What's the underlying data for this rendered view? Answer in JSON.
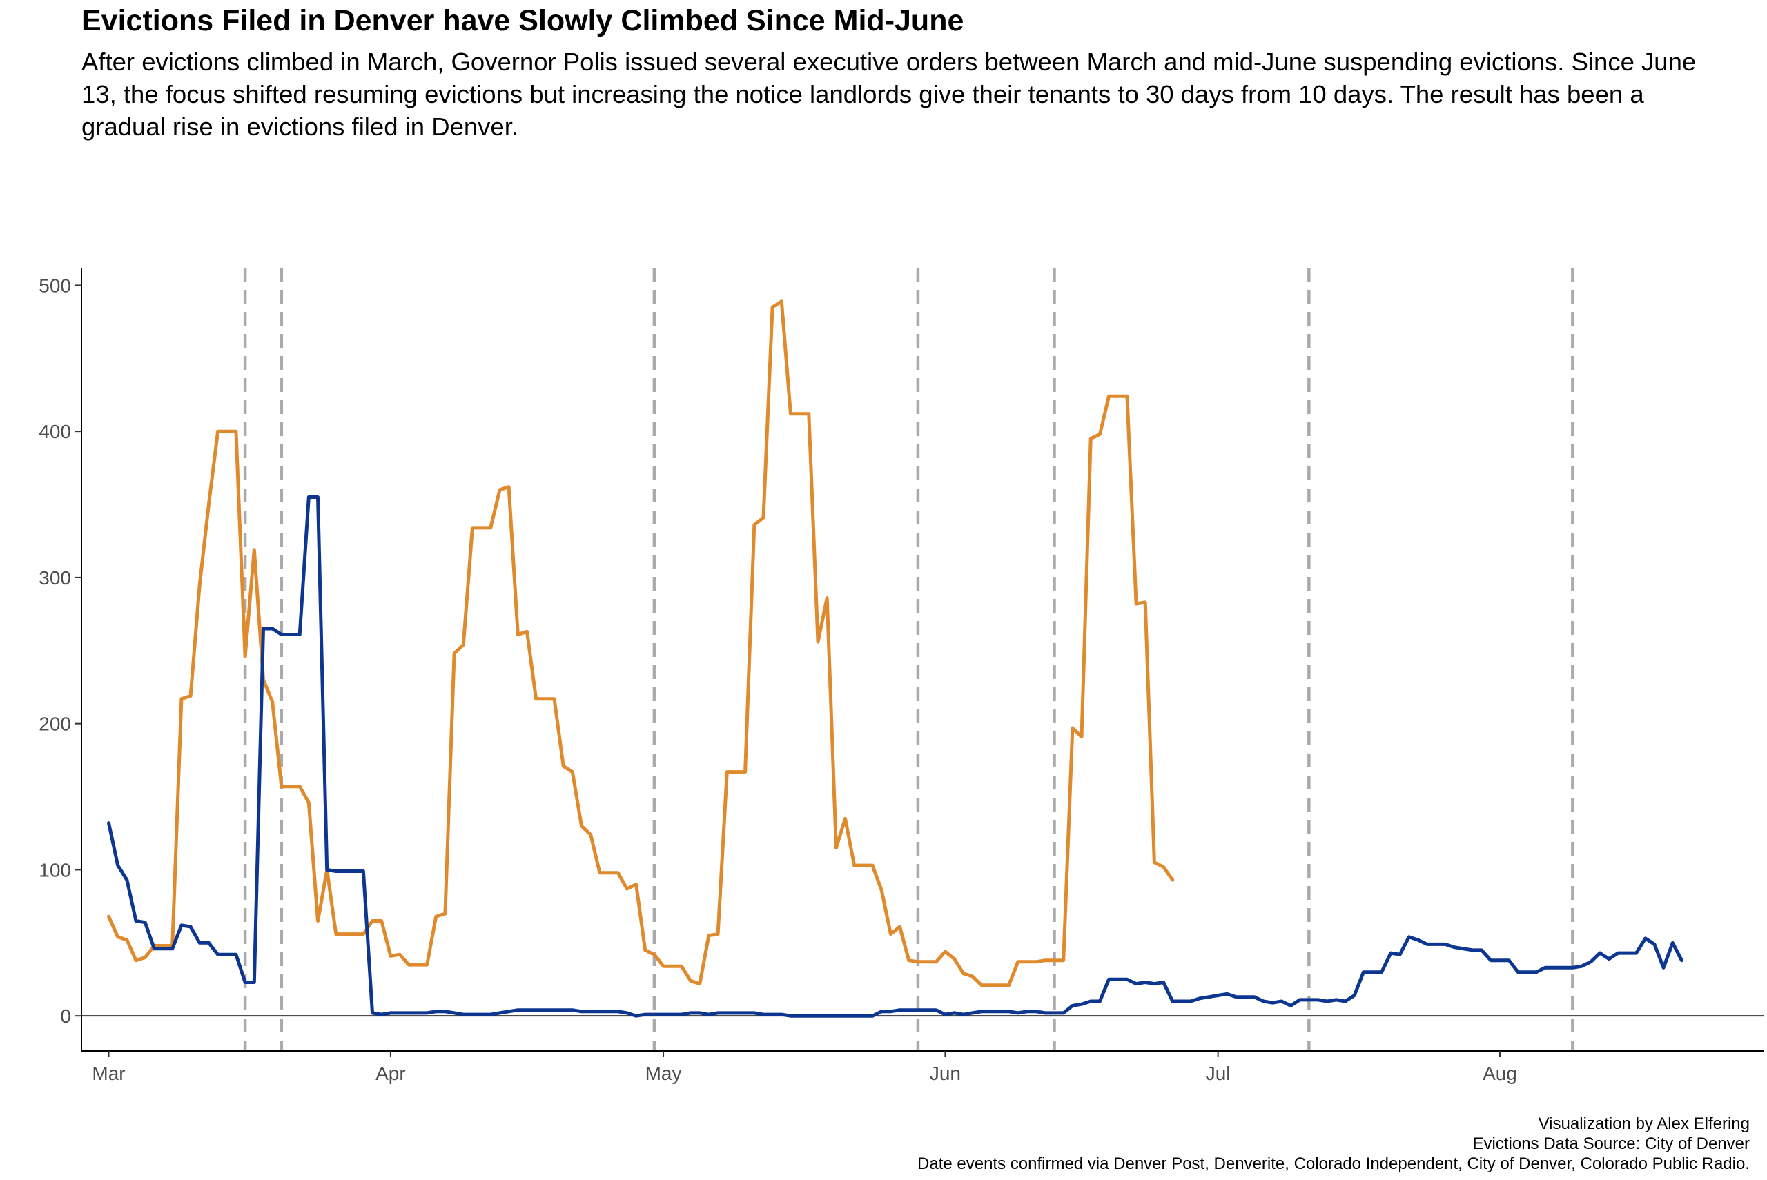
{
  "header": {
    "title": "Evictions Filed in Denver have Slowly Climbed Since Mid-June",
    "subtitle": "After evictions climbed in March, Governor Polis issued several executive orders between March and mid-June suspending evictions. Since June 13, the focus shifted resuming evictions but increasing the notice landlords give their tenants to 30 days from 10 days. The result has been a gradual rise in evictions filed in Denver."
  },
  "caption": {
    "line1": "Visualization by Alex Elfering",
    "line2": "Evictions Data Source: City of Denver",
    "line3": "Date events confirmed via Denver Post, Denverite, Colorado Independent, City of Denver, Colorado Public Radio."
  },
  "chart_data": {
    "type": "line",
    "title": "Evictions Filed in Denver have Slowly Climbed Since Mid-June",
    "xlabel": "",
    "ylabel": "",
    "xlim": [
      "2020-02-27",
      "2020-08-30"
    ],
    "ylim": [
      -24,
      512
    ],
    "x_ticks": [
      {
        "date": "2020-03-01",
        "label": "Mar"
      },
      {
        "date": "2020-04-01",
        "label": "Apr"
      },
      {
        "date": "2020-05-01",
        "label": "May"
      },
      {
        "date": "2020-06-01",
        "label": "Jun"
      },
      {
        "date": "2020-07-01",
        "label": "Jul"
      },
      {
        "date": "2020-08-01",
        "label": "Aug"
      }
    ],
    "y_ticks": [
      0,
      100,
      200,
      300,
      400,
      500
    ],
    "grid": false,
    "legend": "none",
    "reference_line_y": 0,
    "event_dates": [
      "2020-03-16",
      "2020-03-20",
      "2020-04-30",
      "2020-05-29",
      "2020-06-13",
      "2020-07-11",
      "2020-08-09"
    ],
    "colors": {
      "orange": "#E08A2E",
      "blue": "#0D3691",
      "event_line": "#AAAAAA",
      "axis": "#000000"
    },
    "series": [
      {
        "color": "#E08A2E",
        "points": [
          [
            "2020-03-01",
            68
          ],
          [
            "2020-03-02",
            54
          ],
          [
            "2020-03-03",
            52
          ],
          [
            "2020-03-04",
            38
          ],
          [
            "2020-03-05",
            40
          ],
          [
            "2020-03-06",
            48
          ],
          [
            "2020-03-07",
            48
          ],
          [
            "2020-03-08",
            48
          ],
          [
            "2020-03-09",
            217
          ],
          [
            "2020-03-10",
            219
          ],
          [
            "2020-03-11",
            295
          ],
          [
            "2020-03-12",
            350
          ],
          [
            "2020-03-13",
            400
          ],
          [
            "2020-03-14",
            400
          ],
          [
            "2020-03-15",
            400
          ],
          [
            "2020-03-16",
            246
          ],
          [
            "2020-03-17",
            319
          ],
          [
            "2020-03-18",
            230
          ],
          [
            "2020-03-19",
            215
          ],
          [
            "2020-03-20",
            157
          ],
          [
            "2020-03-21",
            157
          ],
          [
            "2020-03-22",
            157
          ],
          [
            "2020-03-23",
            146
          ],
          [
            "2020-03-24",
            65
          ],
          [
            "2020-03-25",
            100
          ],
          [
            "2020-03-26",
            56
          ],
          [
            "2020-03-27",
            56
          ],
          [
            "2020-03-28",
            56
          ],
          [
            "2020-03-29",
            56
          ],
          [
            "2020-03-30",
            65
          ],
          [
            "2020-03-31",
            65
          ],
          [
            "2020-04-01",
            41
          ],
          [
            "2020-04-02",
            42
          ],
          [
            "2020-04-03",
            35
          ],
          [
            "2020-04-04",
            35
          ],
          [
            "2020-04-05",
            35
          ],
          [
            "2020-04-06",
            68
          ],
          [
            "2020-04-07",
            70
          ],
          [
            "2020-04-08",
            248
          ],
          [
            "2020-04-09",
            254
          ],
          [
            "2020-04-10",
            334
          ],
          [
            "2020-04-11",
            334
          ],
          [
            "2020-04-12",
            334
          ],
          [
            "2020-04-13",
            360
          ],
          [
            "2020-04-14",
            362
          ],
          [
            "2020-04-15",
            261
          ],
          [
            "2020-04-16",
            263
          ],
          [
            "2020-04-17",
            217
          ],
          [
            "2020-04-18",
            217
          ],
          [
            "2020-04-19",
            217
          ],
          [
            "2020-04-20",
            171
          ],
          [
            "2020-04-21",
            167
          ],
          [
            "2020-04-22",
            130
          ],
          [
            "2020-04-23",
            124
          ],
          [
            "2020-04-24",
            98
          ],
          [
            "2020-04-25",
            98
          ],
          [
            "2020-04-26",
            98
          ],
          [
            "2020-04-27",
            87
          ],
          [
            "2020-04-28",
            90
          ],
          [
            "2020-04-29",
            45
          ],
          [
            "2020-04-30",
            42
          ],
          [
            "2020-05-01",
            34
          ],
          [
            "2020-05-02",
            34
          ],
          [
            "2020-05-03",
            34
          ],
          [
            "2020-05-04",
            24
          ],
          [
            "2020-05-05",
            22
          ],
          [
            "2020-05-06",
            55
          ],
          [
            "2020-05-07",
            56
          ],
          [
            "2020-05-08",
            167
          ],
          [
            "2020-05-09",
            167
          ],
          [
            "2020-05-10",
            167
          ],
          [
            "2020-05-11",
            336
          ],
          [
            "2020-05-12",
            341
          ],
          [
            "2020-05-13",
            485
          ],
          [
            "2020-05-14",
            489
          ],
          [
            "2020-05-15",
            412
          ],
          [
            "2020-05-16",
            412
          ],
          [
            "2020-05-17",
            412
          ],
          [
            "2020-05-18",
            256
          ],
          [
            "2020-05-19",
            286
          ],
          [
            "2020-05-20",
            115
          ],
          [
            "2020-05-21",
            135
          ],
          [
            "2020-05-22",
            103
          ],
          [
            "2020-05-23",
            103
          ],
          [
            "2020-05-24",
            103
          ],
          [
            "2020-05-25",
            86
          ],
          [
            "2020-05-26",
            56
          ],
          [
            "2020-05-27",
            61
          ],
          [
            "2020-05-28",
            38
          ],
          [
            "2020-05-29",
            37
          ],
          [
            "2020-05-30",
            37
          ],
          [
            "2020-05-31",
            37
          ],
          [
            "2020-06-01",
            44
          ],
          [
            "2020-06-02",
            39
          ],
          [
            "2020-06-03",
            29
          ],
          [
            "2020-06-04",
            27
          ],
          [
            "2020-06-05",
            21
          ],
          [
            "2020-06-06",
            21
          ],
          [
            "2020-06-07",
            21
          ],
          [
            "2020-06-08",
            21
          ],
          [
            "2020-06-09",
            37
          ],
          [
            "2020-06-10",
            37
          ],
          [
            "2020-06-11",
            37
          ],
          [
            "2020-06-12",
            38
          ],
          [
            "2020-06-13",
            38
          ],
          [
            "2020-06-14",
            38
          ],
          [
            "2020-06-15",
            197
          ],
          [
            "2020-06-16",
            191
          ],
          [
            "2020-06-17",
            395
          ],
          [
            "2020-06-18",
            398
          ],
          [
            "2020-06-19",
            424
          ],
          [
            "2020-06-20",
            424
          ],
          [
            "2020-06-21",
            424
          ],
          [
            "2020-06-22",
            282
          ],
          [
            "2020-06-23",
            283
          ],
          [
            "2020-06-24",
            105
          ],
          [
            "2020-06-25",
            102
          ],
          [
            "2020-06-26",
            93
          ]
        ]
      },
      {
        "color": "#0D3691",
        "points": [
          [
            "2020-03-01",
            132
          ],
          [
            "2020-03-02",
            103
          ],
          [
            "2020-03-03",
            93
          ],
          [
            "2020-03-04",
            65
          ],
          [
            "2020-03-05",
            64
          ],
          [
            "2020-03-06",
            46
          ],
          [
            "2020-03-07",
            46
          ],
          [
            "2020-03-08",
            46
          ],
          [
            "2020-03-09",
            62
          ],
          [
            "2020-03-10",
            61
          ],
          [
            "2020-03-11",
            50
          ],
          [
            "2020-03-12",
            50
          ],
          [
            "2020-03-13",
            42
          ],
          [
            "2020-03-14",
            42
          ],
          [
            "2020-03-15",
            42
          ],
          [
            "2020-03-16",
            23
          ],
          [
            "2020-03-17",
            23
          ],
          [
            "2020-03-18",
            265
          ],
          [
            "2020-03-19",
            265
          ],
          [
            "2020-03-20",
            261
          ],
          [
            "2020-03-21",
            261
          ],
          [
            "2020-03-22",
            261
          ],
          [
            "2020-03-23",
            355
          ],
          [
            "2020-03-24",
            355
          ],
          [
            "2020-03-25",
            100
          ],
          [
            "2020-03-26",
            99
          ],
          [
            "2020-03-27",
            99
          ],
          [
            "2020-03-28",
            99
          ],
          [
            "2020-03-29",
            99
          ],
          [
            "2020-03-30",
            2
          ],
          [
            "2020-03-31",
            1
          ],
          [
            "2020-04-01",
            2
          ],
          [
            "2020-04-03",
            2
          ],
          [
            "2020-04-05",
            2
          ],
          [
            "2020-04-06",
            3
          ],
          [
            "2020-04-07",
            3
          ],
          [
            "2020-04-08",
            2
          ],
          [
            "2020-04-09",
            1
          ],
          [
            "2020-04-12",
            1
          ],
          [
            "2020-04-13",
            2
          ],
          [
            "2020-04-14",
            3
          ],
          [
            "2020-04-15",
            4
          ],
          [
            "2020-04-21",
            4
          ],
          [
            "2020-04-22",
            3
          ],
          [
            "2020-04-26",
            3
          ],
          [
            "2020-04-27",
            2
          ],
          [
            "2020-04-28",
            0
          ],
          [
            "2020-04-29",
            1
          ],
          [
            "2020-05-03",
            1
          ],
          [
            "2020-05-04",
            2
          ],
          [
            "2020-05-05",
            2
          ],
          [
            "2020-05-06",
            1
          ],
          [
            "2020-05-07",
            2
          ],
          [
            "2020-05-11",
            2
          ],
          [
            "2020-05-12",
            1
          ],
          [
            "2020-05-14",
            1
          ],
          [
            "2020-05-15",
            0
          ],
          [
            "2020-05-23",
            0
          ],
          [
            "2020-05-24",
            0
          ],
          [
            "2020-05-25",
            3
          ],
          [
            "2020-05-26",
            3
          ],
          [
            "2020-05-27",
            4
          ],
          [
            "2020-05-31",
            4
          ],
          [
            "2020-06-01",
            1
          ],
          [
            "2020-06-02",
            2
          ],
          [
            "2020-06-03",
            1
          ],
          [
            "2020-06-04",
            2
          ],
          [
            "2020-06-05",
            3
          ],
          [
            "2020-06-08",
            3
          ],
          [
            "2020-06-09",
            2
          ],
          [
            "2020-06-10",
            3
          ],
          [
            "2020-06-11",
            3
          ],
          [
            "2020-06-12",
            2
          ],
          [
            "2020-06-13",
            2
          ],
          [
            "2020-06-14",
            2
          ],
          [
            "2020-06-15",
            7
          ],
          [
            "2020-06-16",
            8
          ],
          [
            "2020-06-17",
            10
          ],
          [
            "2020-06-18",
            10
          ],
          [
            "2020-06-19",
            25
          ],
          [
            "2020-06-20",
            25
          ],
          [
            "2020-06-21",
            25
          ],
          [
            "2020-06-22",
            22
          ],
          [
            "2020-06-23",
            23
          ],
          [
            "2020-06-24",
            22
          ],
          [
            "2020-06-25",
            23
          ],
          [
            "2020-06-26",
            10
          ],
          [
            "2020-06-27",
            10
          ],
          [
            "2020-06-28",
            10
          ],
          [
            "2020-06-29",
            12
          ],
          [
            "2020-06-30",
            13
          ],
          [
            "2020-07-01",
            14
          ],
          [
            "2020-07-02",
            15
          ],
          [
            "2020-07-03",
            13
          ],
          [
            "2020-07-04",
            13
          ],
          [
            "2020-07-05",
            13
          ],
          [
            "2020-07-06",
            10
          ],
          [
            "2020-07-07",
            9
          ],
          [
            "2020-07-08",
            10
          ],
          [
            "2020-07-09",
            7
          ],
          [
            "2020-07-10",
            11
          ],
          [
            "2020-07-11",
            11
          ],
          [
            "2020-07-12",
            11
          ],
          [
            "2020-07-13",
            10
          ],
          [
            "2020-07-14",
            11
          ],
          [
            "2020-07-15",
            10
          ],
          [
            "2020-07-16",
            14
          ],
          [
            "2020-07-17",
            30
          ],
          [
            "2020-07-18",
            30
          ],
          [
            "2020-07-19",
            30
          ],
          [
            "2020-07-20",
            43
          ],
          [
            "2020-07-21",
            42
          ],
          [
            "2020-07-22",
            54
          ],
          [
            "2020-07-23",
            52
          ],
          [
            "2020-07-24",
            49
          ],
          [
            "2020-07-25",
            49
          ],
          [
            "2020-07-26",
            49
          ],
          [
            "2020-07-27",
            47
          ],
          [
            "2020-07-28",
            46
          ],
          [
            "2020-07-29",
            45
          ],
          [
            "2020-07-30",
            45
          ],
          [
            "2020-07-31",
            38
          ],
          [
            "2020-08-01",
            38
          ],
          [
            "2020-08-02",
            38
          ],
          [
            "2020-08-03",
            30
          ],
          [
            "2020-08-04",
            30
          ],
          [
            "2020-08-05",
            30
          ],
          [
            "2020-08-06",
            33
          ],
          [
            "2020-08-07",
            33
          ],
          [
            "2020-08-08",
            33
          ],
          [
            "2020-08-09",
            33
          ],
          [
            "2020-08-10",
            34
          ],
          [
            "2020-08-11",
            37
          ],
          [
            "2020-08-12",
            43
          ],
          [
            "2020-08-13",
            39
          ],
          [
            "2020-08-14",
            43
          ],
          [
            "2020-08-15",
            43
          ],
          [
            "2020-08-16",
            43
          ],
          [
            "2020-08-17",
            53
          ],
          [
            "2020-08-18",
            49
          ],
          [
            "2020-08-19",
            33
          ],
          [
            "2020-08-20",
            50
          ],
          [
            "2020-08-21",
            38
          ]
        ]
      }
    ]
  }
}
